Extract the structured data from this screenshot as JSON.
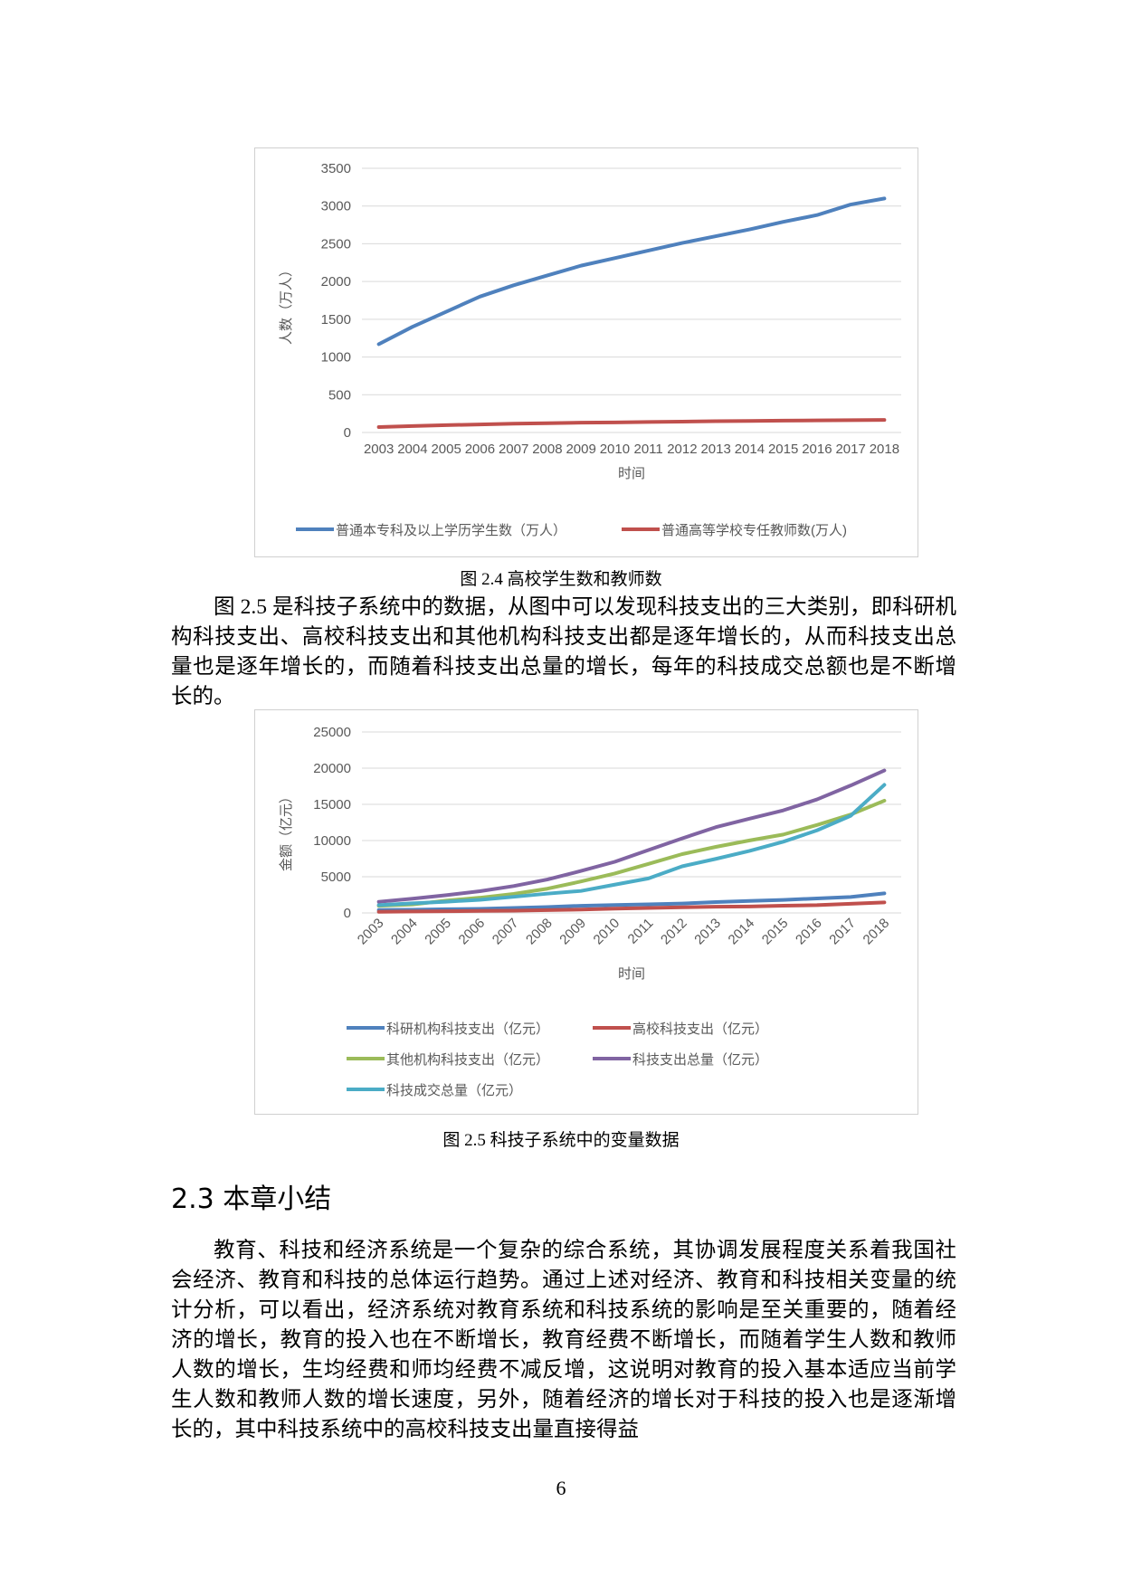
{
  "chart_data": [
    {
      "type": "line",
      "ylabel": "人数（万人）",
      "xlabel": "时间",
      "categories": [
        "2003",
        "2004",
        "2005",
        "2006",
        "2007",
        "2008",
        "2009",
        "2010",
        "2011",
        "2012",
        "2013",
        "2014",
        "2015",
        "2016",
        "2017",
        "2018"
      ],
      "series": [
        {
          "name": "普通本专科及以上学历学生数（万人）",
          "color": "#4f81bd",
          "values": [
            1170,
            1400,
            1600,
            1800,
            1950,
            2080,
            2210,
            2310,
            2410,
            2510,
            2600,
            2690,
            2790,
            2880,
            3020,
            3100
          ]
        },
        {
          "name": "普通高等学校专任教师数(万人)",
          "color": "#c0504d",
          "values": [
            72,
            86,
            97,
            107,
            117,
            123,
            130,
            134,
            139,
            144,
            150,
            153,
            157,
            160,
            163,
            167
          ]
        }
      ],
      "ylim": [
        0,
        3500
      ],
      "yticks": [
        0,
        500,
        1000,
        1500,
        2000,
        2500,
        3000,
        3500
      ],
      "grid": true,
      "legend": "bottom"
    },
    {
      "type": "line",
      "ylabel": "金额（亿元）",
      "xlabel": "时间",
      "categories": [
        "2003",
        "2004",
        "2005",
        "2006",
        "2007",
        "2008",
        "2009",
        "2010",
        "2011",
        "2012",
        "2013",
        "2014",
        "2015",
        "2016",
        "2017",
        "2018"
      ],
      "series": [
        {
          "name": "科研机构科技支出（亿元）",
          "color": "#4f81bd",
          "values": [
            400,
            440,
            510,
            560,
            690,
            820,
            990,
            1100,
            1180,
            1300,
            1500,
            1650,
            1800,
            2000,
            2200,
            2700
          ]
        },
        {
          "name": "高校科技支出（亿元）",
          "color": "#c0504d",
          "values": [
            162,
            200,
            242,
            276,
            315,
            390,
            468,
            597,
            688,
            780,
            856,
            898,
            998,
            1072,
            1266,
            1457
          ]
        },
        {
          "name": "其他机构科技支出（亿元）",
          "color": "#9bbb59",
          "values": [
            979,
            1166,
            1703,
            2103,
            2623,
            3347,
            4350,
            5442,
            6770,
            8125,
            9125,
            10018,
            10828,
            12153,
            13586,
            15508
          ]
        },
        {
          "name": "科技支出总量（亿元）",
          "color": "#8064a2",
          "values": [
            1540,
            1966,
            2450,
            3003,
            3710,
            4616,
            5802,
            7063,
            8687,
            10298,
            11846,
            13016,
            14170,
            15677,
            17606,
            19678
          ]
        },
        {
          "name": "科技成交总量（亿元）",
          "color": "#4bacc6",
          "values": [
            1085,
            1334,
            1551,
            1818,
            2227,
            2665,
            3039,
            3907,
            4764,
            6437,
            7469,
            8577,
            9836,
            11407,
            13424,
            17697
          ]
        }
      ],
      "ylim": [
        0,
        25000
      ],
      "yticks": [
        0,
        5000,
        10000,
        15000,
        20000,
        25000
      ],
      "grid": true,
      "legend": "bottom"
    }
  ],
  "captions": [
    "图 2.4  高校学生数和教师数",
    "图 2.5 科技子系统中的变量数据"
  ],
  "paragraphs": [
    "图 2.5 是科技子系统中的数据，从图中可以发现科技支出的三大类别，即科研机构科技支出、高校科技支出和其他机构科技支出都是逐年增长的，从而科技支出总量也是逐年增长的，而随着科技支出总量的增长，每年的科技成交总额也是不断增长的。",
    "教育、科技和经济系统是一个复杂的综合系统，其协调发展程度关系着我国社会经济、教育和科技的总体运行趋势。通过上述对经济、教育和科技相关变量的统计分析，可以看出，经济系统对教育系统和科技系统的影响是至关重要的，随着经济的增长，教育的投入也在不断增长，教育经费不断增长，而随着学生人数和教师人数的增长，生均经费和师均经费不减反增，这说明对教育的投入基本适应当前学生人数和教师人数的增长速度，另外，随着经济的增长对于科技的投入也是逐渐增长的，其中科技系统中的高校科技支出量直接得益"
  ],
  "heading": "2.3 本章小结",
  "page_number": "6"
}
